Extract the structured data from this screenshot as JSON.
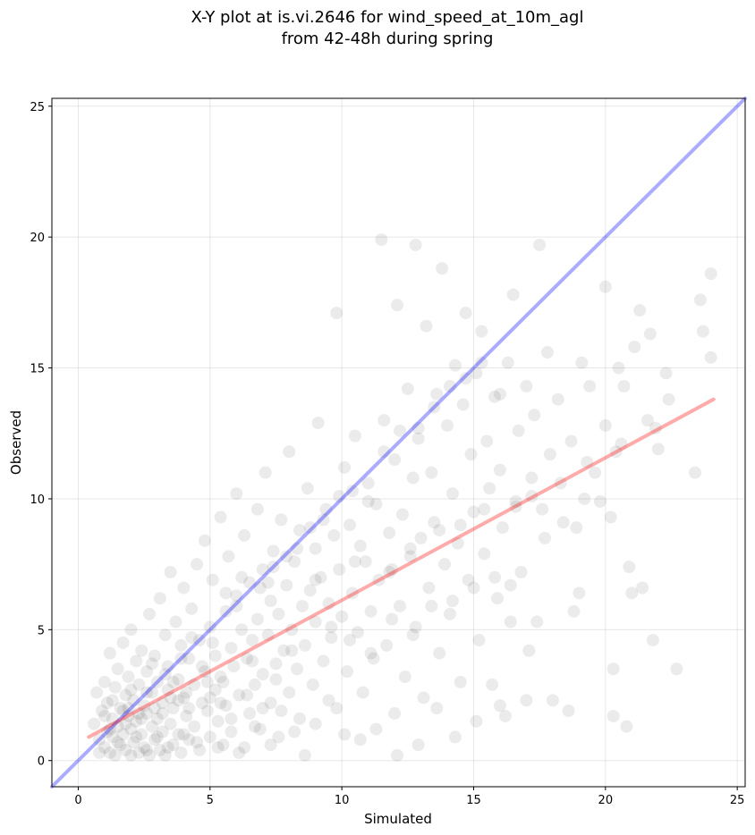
{
  "chart_data": {
    "type": "scatter",
    "title_line1": "X-Y plot at is.vi.2646 for wind_speed_at_10m_agl",
    "title_line2": "from 42-48h during spring",
    "xlabel": "Simulated",
    "ylabel": "Observed",
    "xlim": [
      -1,
      25.3
    ],
    "ylim": [
      -1,
      25.3
    ],
    "xticks": [
      0,
      5,
      10,
      15,
      20,
      25
    ],
    "yticks": [
      0,
      5,
      10,
      15,
      20,
      25
    ],
    "grid": true,
    "point_color": "#000000",
    "point_alpha": 0.08,
    "identity_line": {
      "color": "#0000ff",
      "x": [
        -1,
        25.3
      ],
      "y": [
        -1,
        25.3
      ]
    },
    "fit_line": {
      "color": "#ff0000",
      "x": [
        0.4,
        24.1
      ],
      "y": [
        0.9,
        13.8
      ]
    },
    "points": [
      [
        0.6,
        1.4
      ],
      [
        0.7,
        2.6
      ],
      [
        0.8,
        0.8
      ],
      [
        0.9,
        1.9
      ],
      [
        1.0,
        0.5
      ],
      [
        1.0,
        3.0
      ],
      [
        1.1,
        1.1
      ],
      [
        1.1,
        2.2
      ],
      [
        1.2,
        0.3
      ],
      [
        1.2,
        4.1
      ],
      [
        1.3,
        1.6
      ],
      [
        1.3,
        0.9
      ],
      [
        1.4,
        2.8
      ],
      [
        1.4,
        0.2
      ],
      [
        1.5,
        1.3
      ],
      [
        1.5,
        3.5
      ],
      [
        1.6,
        0.6
      ],
      [
        1.6,
        2.0
      ],
      [
        1.7,
        1.0
      ],
      [
        1.7,
        4.5
      ],
      [
        1.8,
        0.4
      ],
      [
        1.8,
        2.5
      ],
      [
        1.9,
        1.7
      ],
      [
        1.9,
        3.2
      ],
      [
        2.0,
        0.2
      ],
      [
        2.0,
        1.2
      ],
      [
        2.0,
        5.0
      ],
      [
        2.1,
        2.3
      ],
      [
        2.1,
        0.7
      ],
      [
        2.2,
        3.8
      ],
      [
        2.2,
        1.5
      ],
      [
        2.3,
        0.3
      ],
      [
        2.3,
        2.9
      ],
      [
        2.4,
        1.0
      ],
      [
        2.4,
        4.2
      ],
      [
        2.5,
        0.5
      ],
      [
        2.5,
        2.1
      ],
      [
        2.6,
        1.8
      ],
      [
        2.6,
        3.4
      ],
      [
        2.7,
        0.2
      ],
      [
        2.7,
        5.6
      ],
      [
        2.8,
        1.3
      ],
      [
        2.8,
        2.6
      ],
      [
        2.9,
        0.8
      ],
      [
        2.9,
        4.0
      ],
      [
        3.0,
        1.6
      ],
      [
        3.0,
        3.0
      ],
      [
        3.1,
        0.4
      ],
      [
        3.1,
        6.2
      ],
      [
        3.2,
        2.2
      ],
      [
        3.2,
        1.1
      ],
      [
        3.3,
        4.8
      ],
      [
        3.3,
        0.2
      ],
      [
        3.4,
        2.7
      ],
      [
        3.4,
        3.6
      ],
      [
        3.5,
        1.4
      ],
      [
        3.5,
        7.2
      ],
      [
        3.6,
        0.6
      ],
      [
        3.6,
        2.0
      ],
      [
        3.7,
        5.3
      ],
      [
        3.8,
        3.1
      ],
      [
        3.8,
        1.0
      ],
      [
        3.9,
        0.3
      ],
      [
        3.9,
        4.4
      ],
      [
        4.0,
        2.4
      ],
      [
        4.0,
        6.6
      ],
      [
        4.1,
        1.7
      ],
      [
        4.2,
        3.9
      ],
      [
        4.2,
        0.8
      ],
      [
        4.3,
        5.8
      ],
      [
        4.4,
        2.9
      ],
      [
        4.4,
        1.3
      ],
      [
        4.5,
        7.5
      ],
      [
        4.6,
        4.6
      ],
      [
        4.6,
        0.4
      ],
      [
        4.7,
        2.2
      ],
      [
        4.8,
        3.4
      ],
      [
        4.8,
        8.4
      ],
      [
        4.9,
        1.9
      ],
      [
        5.0,
        5.1
      ],
      [
        5.0,
        0.9
      ],
      [
        5.1,
        6.9
      ],
      [
        5.2,
        2.7
      ],
      [
        5.2,
        4.0
      ],
      [
        5.3,
        1.5
      ],
      [
        5.4,
        9.3
      ],
      [
        5.4,
        3.2
      ],
      [
        5.5,
        0.6
      ],
      [
        5.6,
        5.7
      ],
      [
        5.6,
        2.1
      ],
      [
        5.7,
        7.8
      ],
      [
        5.8,
        4.3
      ],
      [
        5.8,
        1.1
      ],
      [
        5.9,
        3.6
      ],
      [
        6.0,
        6.3
      ],
      [
        6.0,
        10.2
      ],
      [
        6.1,
        2.5
      ],
      [
        6.2,
        5.0
      ],
      [
        6.3,
        0.5
      ],
      [
        6.3,
        8.6
      ],
      [
        6.4,
        3.9
      ],
      [
        6.5,
        1.8
      ],
      [
        6.5,
        6.8
      ],
      [
        6.6,
        4.6
      ],
      [
        6.7,
        2.9
      ],
      [
        6.8,
        9.6
      ],
      [
        6.8,
        5.4
      ],
      [
        6.9,
        1.2
      ],
      [
        7.0,
        7.3
      ],
      [
        7.0,
        3.3
      ],
      [
        7.1,
        11.0
      ],
      [
        7.2,
        4.8
      ],
      [
        7.3,
        2.2
      ],
      [
        7.3,
        6.1
      ],
      [
        7.4,
        8.0
      ],
      [
        7.5,
        3.7
      ],
      [
        7.6,
        5.6
      ],
      [
        7.6,
        0.9
      ],
      [
        7.7,
        9.2
      ],
      [
        7.8,
        4.2
      ],
      [
        7.9,
        6.7
      ],
      [
        8.0,
        2.6
      ],
      [
        8.0,
        11.8
      ],
      [
        8.1,
        5.0
      ],
      [
        8.2,
        7.6
      ],
      [
        8.3,
        3.5
      ],
      [
        8.4,
        8.8
      ],
      [
        8.4,
        1.6
      ],
      [
        8.5,
        5.9
      ],
      [
        8.6,
        4.4
      ],
      [
        8.7,
        10.4
      ],
      [
        8.8,
        6.5
      ],
      [
        8.9,
        2.9
      ],
      [
        9.0,
        8.1
      ],
      [
        9.0,
        5.3
      ],
      [
        9.1,
        12.9
      ],
      [
        9.2,
        7.0
      ],
      [
        9.3,
        3.8
      ],
      [
        9.4,
        9.6
      ],
      [
        9.5,
        6.0
      ],
      [
        9.6,
        4.7
      ],
      [
        9.7,
        8.6
      ],
      [
        9.8,
        2.0
      ],
      [
        9.8,
        17.1
      ],
      [
        9.9,
        7.3
      ],
      [
        10.0,
        5.5
      ],
      [
        10.1,
        11.2
      ],
      [
        10.2,
        3.4
      ],
      [
        10.3,
        9.0
      ],
      [
        10.4,
        6.4
      ],
      [
        10.5,
        12.4
      ],
      [
        10.6,
        4.9
      ],
      [
        10.7,
        8.2
      ],
      [
        10.8,
        2.6
      ],
      [
        10.9,
        7.6
      ],
      [
        11.0,
        10.6
      ],
      [
        11.1,
        5.7
      ],
      [
        11.2,
        3.9
      ],
      [
        11.3,
        9.8
      ],
      [
        11.4,
        6.9
      ],
      [
        11.5,
        19.9
      ],
      [
        11.6,
        13.0
      ],
      [
        11.7,
        4.4
      ],
      [
        11.8,
        8.7
      ],
      [
        11.9,
        7.3
      ],
      [
        12.0,
        1.8
      ],
      [
        12.0,
        11.5
      ],
      [
        12.1,
        17.4
      ],
      [
        12.2,
        5.9
      ],
      [
        12.3,
        9.4
      ],
      [
        12.4,
        3.2
      ],
      [
        12.5,
        14.2
      ],
      [
        12.6,
        7.8
      ],
      [
        12.7,
        10.8
      ],
      [
        12.8,
        19.7
      ],
      [
        12.8,
        5.1
      ],
      [
        12.9,
        12.3
      ],
      [
        13.0,
        8.5
      ],
      [
        13.1,
        2.4
      ],
      [
        13.2,
        16.6
      ],
      [
        13.3,
        6.6
      ],
      [
        13.4,
        11.0
      ],
      [
        13.5,
        9.1
      ],
      [
        13.6,
        14.0
      ],
      [
        13.7,
        4.1
      ],
      [
        13.8,
        18.8
      ],
      [
        13.9,
        7.5
      ],
      [
        14.0,
        12.8
      ],
      [
        14.1,
        5.6
      ],
      [
        14.2,
        10.2
      ],
      [
        14.3,
        15.1
      ],
      [
        14.4,
        8.3
      ],
      [
        14.5,
        3.0
      ],
      [
        14.6,
        13.6
      ],
      [
        14.7,
        17.1
      ],
      [
        14.8,
        6.9
      ],
      [
        14.9,
        11.7
      ],
      [
        15.0,
        9.5
      ],
      [
        15.1,
        14.8
      ],
      [
        15.2,
        4.6
      ],
      [
        15.3,
        16.4
      ],
      [
        15.4,
        7.9
      ],
      [
        15.5,
        12.2
      ],
      [
        15.6,
        10.4
      ],
      [
        15.7,
        2.9
      ],
      [
        15.8,
        13.9
      ],
      [
        15.9,
        6.2
      ],
      [
        16.0,
        11.1
      ],
      [
        16.1,
        8.9
      ],
      [
        16.2,
        1.7
      ],
      [
        16.3,
        15.2
      ],
      [
        16.4,
        5.3
      ],
      [
        16.5,
        17.8
      ],
      [
        16.6,
        9.7
      ],
      [
        16.7,
        12.6
      ],
      [
        16.8,
        7.2
      ],
      [
        17.0,
        14.3
      ],
      [
        17.1,
        4.2
      ],
      [
        17.2,
        10.8
      ],
      [
        17.3,
        13.2
      ],
      [
        17.4,
        5.3
      ],
      [
        17.5,
        19.7
      ],
      [
        17.6,
        9.6
      ],
      [
        17.7,
        8.5
      ],
      [
        17.8,
        15.6
      ],
      [
        17.9,
        11.7
      ],
      [
        18.0,
        2.3
      ],
      [
        18.2,
        13.8
      ],
      [
        18.4,
        9.1
      ],
      [
        18.6,
        1.9
      ],
      [
        18.7,
        12.2
      ],
      [
        18.8,
        5.7
      ],
      [
        18.9,
        8.9
      ],
      [
        19.0,
        6.4
      ],
      [
        19.1,
        15.2
      ],
      [
        19.2,
        10.0
      ],
      [
        19.4,
        14.3
      ],
      [
        19.6,
        11.0
      ],
      [
        19.8,
        9.9
      ],
      [
        20.0,
        18.1
      ],
      [
        20.0,
        12.8
      ],
      [
        20.2,
        9.3
      ],
      [
        20.3,
        3.5
      ],
      [
        20.3,
        1.7
      ],
      [
        20.4,
        11.8
      ],
      [
        20.5,
        15.0
      ],
      [
        20.7,
        14.3
      ],
      [
        20.8,
        1.3
      ],
      [
        20.9,
        7.4
      ],
      [
        21.0,
        6.4
      ],
      [
        21.1,
        15.8
      ],
      [
        21.3,
        17.2
      ],
      [
        21.4,
        6.6
      ],
      [
        21.6,
        13.0
      ],
      [
        21.7,
        16.3
      ],
      [
        21.8,
        4.6
      ],
      [
        22.0,
        11.9
      ],
      [
        22.3,
        14.8
      ],
      [
        22.4,
        13.8
      ],
      [
        22.7,
        3.5
      ],
      [
        23.4,
        11.0
      ],
      [
        23.6,
        17.6
      ],
      [
        23.7,
        16.4
      ],
      [
        24.0,
        18.6
      ],
      [
        24.0,
        15.4
      ],
      [
        0.8,
        0.3
      ],
      [
        1.0,
        1.7
      ],
      [
        1.3,
        2.3
      ],
      [
        1.5,
        0.7
      ],
      [
        1.8,
        1.4
      ],
      [
        2.0,
        2.7
      ],
      [
        2.2,
        0.9
      ],
      [
        2.4,
        1.6
      ],
      [
        2.6,
        0.4
      ],
      [
        2.8,
        3.7
      ],
      [
        3.0,
        0.9
      ],
      [
        3.2,
        1.8
      ],
      [
        3.4,
        0.5
      ],
      [
        3.6,
        3.0
      ],
      [
        3.8,
        2.3
      ],
      [
        4.0,
        1.0
      ],
      [
        4.2,
        2.0
      ],
      [
        4.5,
        0.7
      ],
      [
        4.7,
        3.6
      ],
      [
        5.0,
        2.4
      ],
      [
        5.3,
        0.5
      ],
      [
        5.5,
        3.0
      ],
      [
        5.8,
        1.6
      ],
      [
        6.1,
        0.3
      ],
      [
        6.4,
        2.5
      ],
      [
        6.7,
        1.3
      ],
      [
        7.0,
        2.0
      ],
      [
        7.3,
        0.6
      ],
      [
        7.7,
        1.9
      ],
      [
        8.2,
        1.1
      ],
      [
        8.6,
        0.2
      ],
      [
        9.0,
        1.4
      ],
      [
        9.5,
        2.3
      ],
      [
        10.1,
        1.0
      ],
      [
        10.7,
        0.8
      ],
      [
        11.3,
        1.2
      ],
      [
        12.1,
        0.2
      ],
      [
        12.9,
        0.6
      ],
      [
        13.6,
        2.0
      ],
      [
        14.3,
        0.9
      ],
      [
        15.1,
        1.5
      ],
      [
        16.0,
        2.1
      ],
      [
        17.0,
        2.3
      ],
      [
        4.3,
        4.7
      ],
      [
        5.1,
        4.5
      ],
      [
        5.6,
        6.4
      ],
      [
        6.2,
        7.0
      ],
      [
        6.9,
        6.6
      ],
      [
        7.4,
        7.4
      ],
      [
        7.9,
        7.8
      ],
      [
        8.3,
        8.1
      ],
      [
        8.8,
        8.9
      ],
      [
        9.3,
        9.2
      ],
      [
        9.9,
        10.1
      ],
      [
        10.4,
        10.3
      ],
      [
        11.0,
        9.9
      ],
      [
        11.6,
        11.8
      ],
      [
        12.2,
        12.6
      ],
      [
        12.9,
        12.7
      ],
      [
        13.5,
        13.5
      ],
      [
        14.1,
        14.3
      ],
      [
        14.7,
        14.6
      ],
      [
        15.3,
        15.2
      ],
      [
        16.0,
        14.0
      ],
      [
        3.3,
        3.3
      ],
      [
        3.9,
        3.9
      ],
      [
        2.6,
        2.6
      ],
      [
        1.9,
        2.0
      ],
      [
        1.2,
        1.2
      ],
      [
        6.0,
        5.9
      ],
      [
        7.2,
        6.8
      ],
      [
        9.0,
        6.9
      ],
      [
        10.5,
        7.6
      ],
      [
        11.8,
        7.2
      ],
      [
        12.6,
        8.1
      ],
      [
        13.7,
        8.8
      ],
      [
        14.5,
        9.0
      ],
      [
        15.4,
        9.6
      ],
      [
        16.6,
        9.9
      ],
      [
        17.2,
        10.1
      ],
      [
        18.3,
        10.6
      ],
      [
        19.3,
        11.4
      ],
      [
        20.6,
        12.1
      ],
      [
        21.9,
        12.7
      ],
      [
        9.6,
        5.1
      ],
      [
        10.3,
        4.6
      ],
      [
        11.1,
        4.1
      ],
      [
        11.9,
        5.4
      ],
      [
        12.7,
        4.8
      ],
      [
        13.4,
        5.9
      ],
      [
        14.2,
        6.1
      ],
      [
        15.0,
        6.6
      ],
      [
        15.8,
        7.0
      ],
      [
        16.4,
        6.7
      ],
      [
        8.1,
        4.2
      ],
      [
        7.5,
        3.1
      ],
      [
        6.6,
        3.8
      ],
      [
        5.4,
        2.2
      ],
      [
        4.9,
        3.0
      ],
      [
        4.1,
        2.6
      ],
      [
        3.5,
        2.4
      ],
      [
        2.9,
        2.0
      ],
      [
        2.3,
        1.8
      ],
      [
        1.7,
        1.9
      ]
    ]
  }
}
